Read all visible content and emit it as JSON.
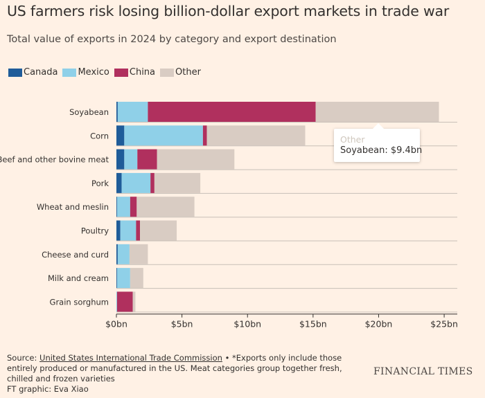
{
  "header": {
    "title": "US farmers risk losing billion-dollar export markets in trade war",
    "subtitle": "Total value of exports in 2024 by category and export destination"
  },
  "legend": [
    {
      "label": "Canada",
      "color": "#1f5c99"
    },
    {
      "label": "Mexico",
      "color": "#8fd0e8"
    },
    {
      "label": "China",
      "color": "#b0305e"
    },
    {
      "label": "Other",
      "color": "#d9ccc3"
    }
  ],
  "chart_data": {
    "type": "bar",
    "orientation": "horizontal",
    "stacked": true,
    "categories": [
      "Soyabean",
      "Corn",
      "Beef and other bovine meat",
      "Pork",
      "Wheat and meslin",
      "Poultry",
      "Cheese and curd",
      "Milk and cream",
      "Grain sorghum"
    ],
    "series": [
      {
        "name": "Canada",
        "color": "#1f5c99",
        "values": [
          0.1,
          0.6,
          0.6,
          0.4,
          0.05,
          0.3,
          0.1,
          0.05,
          0.0
        ]
      },
      {
        "name": "Mexico",
        "color": "#8fd0e8",
        "values": [
          2.3,
          6.0,
          1.0,
          2.2,
          1.0,
          1.2,
          0.9,
          1.0,
          0.05
        ]
      },
      {
        "name": "China",
        "color": "#b0305e",
        "values": [
          12.8,
          0.3,
          1.5,
          0.3,
          0.5,
          0.3,
          0.0,
          0.0,
          1.2
        ]
      },
      {
        "name": "Other",
        "color": "#d9ccc3",
        "values": [
          9.4,
          7.5,
          5.9,
          3.5,
          4.4,
          2.8,
          1.4,
          1.0,
          0.2
        ]
      }
    ],
    "x_ticks": [
      "$0bn",
      "$5bn",
      "$10bn",
      "$15bn",
      "$20bn",
      "$25bn"
    ],
    "x_tick_values": [
      0,
      5,
      10,
      15,
      20,
      25
    ],
    "xlim": [
      0,
      26
    ],
    "grid": true
  },
  "tooltip": {
    "series": "Other",
    "text": "Soyabean: $9.4bn"
  },
  "footer": {
    "source_prefix": "Source: ",
    "source_link": "United States International Trade Commission",
    "note": " • *Exports only include those entirely produced or manufactured in the US. Meat categories group together fresh, chilled and frozen varieties",
    "credit": "FT graphic: Eva Xiao"
  },
  "branding": {
    "logo": "FINANCIAL TIMES"
  }
}
